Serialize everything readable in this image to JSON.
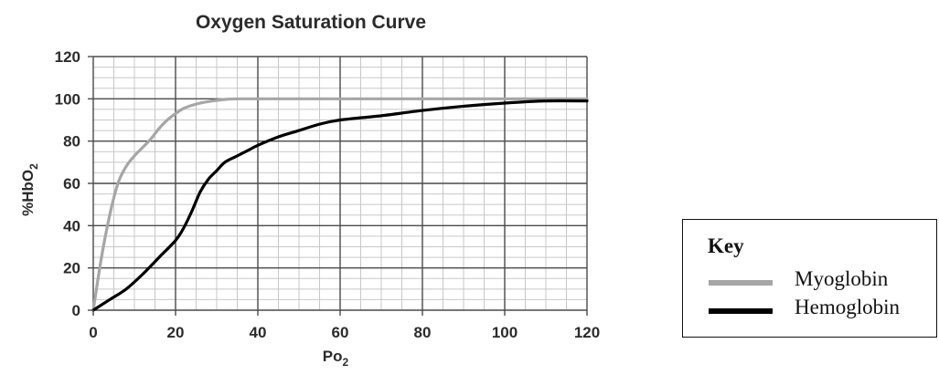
{
  "chart_data": {
    "type": "line",
    "title": "Oxygen Saturation Curve",
    "xlabel": "Po",
    "xlabel_sub": "2",
    "ylabel": "%HbO",
    "ylabel_sub": "2",
    "xlim": [
      0,
      120
    ],
    "ylim": [
      0,
      120
    ],
    "x_ticks": [
      "0",
      "20",
      "40",
      "60",
      "80",
      "100",
      "120"
    ],
    "y_ticks": [
      "0",
      "20",
      "40",
      "60",
      "80",
      "100",
      "120"
    ],
    "grid": true,
    "series": [
      {
        "name": "Myoglobin",
        "color": "#a6a6a6",
        "points": [
          [
            0,
            0
          ],
          [
            2,
            25
          ],
          [
            4,
            45
          ],
          [
            6,
            60
          ],
          [
            8,
            68
          ],
          [
            10,
            73
          ],
          [
            12,
            77
          ],
          [
            14,
            81
          ],
          [
            16,
            86
          ],
          [
            18,
            90
          ],
          [
            20,
            93
          ],
          [
            22,
            95.5
          ],
          [
            25,
            97.5
          ],
          [
            28,
            98.7
          ],
          [
            32,
            99.7
          ],
          [
            36,
            100
          ],
          [
            60,
            100
          ],
          [
            100,
            100
          ],
          [
            120,
            100
          ]
        ]
      },
      {
        "name": "Hemoglobin",
        "color": "#000000",
        "points": [
          [
            0,
            0
          ],
          [
            4,
            5
          ],
          [
            8,
            10
          ],
          [
            12,
            17
          ],
          [
            16,
            25
          ],
          [
            20,
            33
          ],
          [
            22,
            39
          ],
          [
            24,
            47
          ],
          [
            26,
            56
          ],
          [
            28,
            62
          ],
          [
            30,
            66
          ],
          [
            32,
            70
          ],
          [
            35,
            73
          ],
          [
            38,
            76
          ],
          [
            40,
            78
          ],
          [
            45,
            82
          ],
          [
            50,
            85
          ],
          [
            55,
            88
          ],
          [
            60,
            90
          ],
          [
            70,
            92
          ],
          [
            80,
            94.5
          ],
          [
            90,
            96.5
          ],
          [
            100,
            98
          ],
          [
            110,
            99
          ],
          [
            120,
            99
          ]
        ]
      }
    ]
  },
  "key": {
    "title": "Key",
    "items": [
      {
        "label": "Myoglobin",
        "color": "#a6a6a6"
      },
      {
        "label": "Hemoglobin",
        "color": "#000000"
      }
    ]
  }
}
